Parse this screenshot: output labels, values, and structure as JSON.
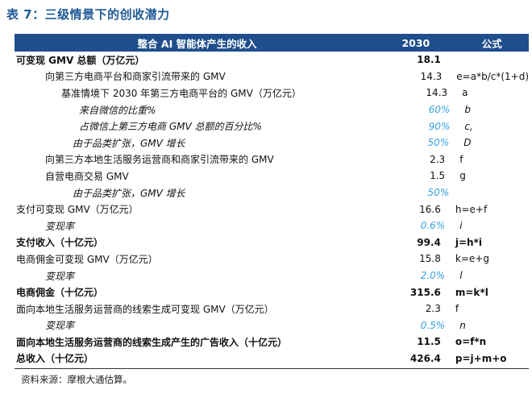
{
  "title": "表 7：三级情景下的创收潜力",
  "header": {
    "col1": "整合 AI 智能体产生的收入",
    "col2": "2030",
    "col3": "公式"
  },
  "rows": [
    {
      "label": "可变现 GMV 总额（万亿元）",
      "value": "18.1",
      "formula": ""
    },
    {
      "label": "向第三方电商平台和商家引流带来的 GMV",
      "value": "14.3",
      "formula": "e=a*b/c*(1+d)"
    },
    {
      "label": "基准情境下 2030 年第三方电商平台的 GMV（万亿元）",
      "value": "14.3",
      "formula": "a"
    },
    {
      "label": "来自微信的比重%",
      "value": "60%",
      "formula": "b"
    },
    {
      "label": "占微信上第三方电商 GMV 总额的百分比%",
      "value": "90%",
      "formula": "c,"
    },
    {
      "label": "由于品类扩张，GMV 增长",
      "value": "50%",
      "formula": "D"
    },
    {
      "label": "向第三方本地生活服务运营商和商家引流带来的 GMV",
      "value": "2.3",
      "formula": "f"
    },
    {
      "label": "自营电商交易 GMV",
      "value": "1.5",
      "formula": "g"
    },
    {
      "label": "由于品类扩张，GMV 增长",
      "value": "50%",
      "formula": ""
    },
    {
      "label": "支付可变现 GMV（万亿元）",
      "value": "16.6",
      "formula": "h=e+f"
    },
    {
      "label": "变现率",
      "value": "0.6%",
      "formula": "i"
    },
    {
      "label": "支付收入（十亿元）",
      "value": "99.4",
      "formula": "j=h*i"
    },
    {
      "label": "电商佣金可变现 GMV（万亿元）",
      "value": "15.8",
      "formula": "k=e+g"
    },
    {
      "label": "变现率",
      "value": "2.0%",
      "formula": "l"
    },
    {
      "label": "电商佣金（十亿元）",
      "value": "315.6",
      "formula": "m=k*l"
    },
    {
      "label": "面向本地生活服务运营商的线索生成可变现 GMV（万亿元）",
      "value": "2.3",
      "formula": "f"
    },
    {
      "label": "变现率",
      "value": "0.5%",
      "formula": "n"
    },
    {
      "label": "面向本地生活服务运营商的线索生成产生的广告收入（十亿元）",
      "value": "11.5",
      "formula": "o=f*n"
    },
    {
      "label": "总收入（十亿元）",
      "value": "426.4",
      "formula": "p=j+m+o"
    }
  ],
  "source": "资料来源：摩根大通估算。",
  "colors": {
    "header_bg": "#1f4e8c",
    "title": "#1f5a96",
    "highlight_value": "#3aa0dc"
  }
}
